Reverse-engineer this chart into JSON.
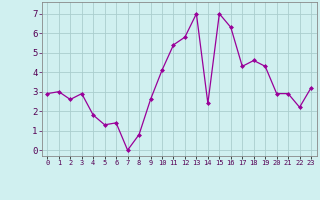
{
  "x": [
    0,
    1,
    2,
    3,
    4,
    5,
    6,
    7,
    8,
    9,
    10,
    11,
    12,
    13,
    14,
    15,
    16,
    17,
    18,
    19,
    20,
    21,
    22,
    23
  ],
  "y": [
    2.9,
    3.0,
    2.6,
    2.9,
    1.8,
    1.3,
    1.4,
    0.0,
    0.8,
    2.6,
    4.1,
    5.4,
    5.8,
    7.0,
    2.4,
    7.0,
    6.3,
    4.3,
    4.6,
    4.3,
    2.9,
    2.9,
    2.2,
    3.2
  ],
  "line_color": "#990099",
  "marker": "D",
  "marker_size": 2.0,
  "bg_color": "#d0f0f0",
  "grid_color": "#aacece",
  "xlabel_color": "#ffffff",
  "xlabel_bg": "#6666aa",
  "ylabel_ticks": [
    0,
    1,
    2,
    3,
    4,
    5,
    6,
    7
  ],
  "xlim": [
    -0.5,
    23.5
  ],
  "ylim": [
    -0.3,
    7.6
  ],
  "xtick_labels": [
    "0",
    "1",
    "2",
    "3",
    "4",
    "5",
    "6",
    "7",
    "8",
    "9",
    "10",
    "11",
    "12",
    "13",
    "14",
    "15",
    "16",
    "17",
    "18",
    "19",
    "20",
    "21",
    "22",
    "23"
  ],
  "font_family": "monospace"
}
